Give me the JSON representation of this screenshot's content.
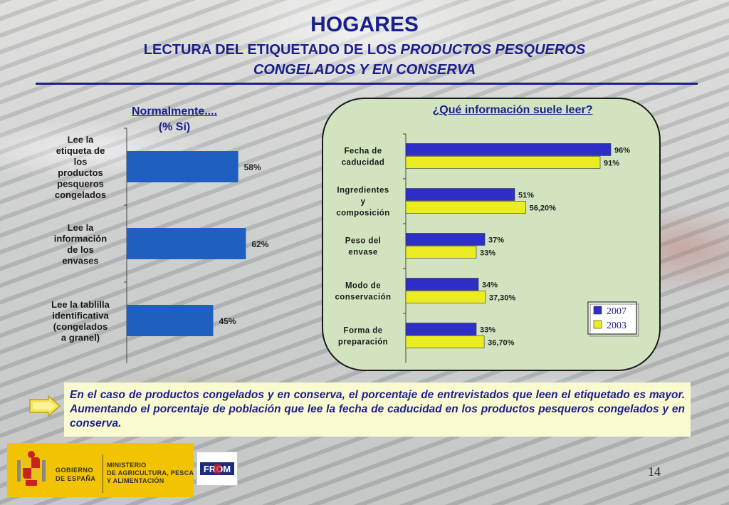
{
  "header": {
    "title": "HOGARES",
    "subtitle_line1_a": "LECTURA DEL ETIQUETADO DE LOS ",
    "subtitle_line1_b": "PRODUCTOS PESQUEROS",
    "subtitle_line2": "CONGELADOS Y EN CONSERVA"
  },
  "left_chart_head": {
    "line1": "Normalmente....",
    "line2": "(% Sí)"
  },
  "right_chart_head": "¿Qué información suele leer?",
  "chart_data": [
    {
      "type": "bar",
      "orientation": "horizontal",
      "title": "Normalmente.... (% Sí)",
      "categories": [
        [
          "Lee la",
          "etiqueta de",
          "los",
          "productos",
          "pesqueros",
          "congelados"
        ],
        [
          "Lee la",
          "información",
          "de los",
          "envases"
        ],
        [
          "Lee la tablilla",
          "identificativa",
          "(congelados",
          "a granel)"
        ]
      ],
      "values": [
        58,
        62,
        45
      ],
      "value_labels": [
        "58%",
        "62%",
        "45%"
      ],
      "xlim": [
        0,
        100
      ],
      "colors": {
        "bar": "#1f5fbf"
      }
    },
    {
      "type": "bar",
      "orientation": "horizontal",
      "title": "¿Qué información suele leer?",
      "categories": [
        [
          "Fecha de",
          "caducidad"
        ],
        [
          "Ingredientes",
          "y",
          "composición"
        ],
        [
          "Peso del",
          "envase"
        ],
        [
          "Modo de",
          "conservación"
        ],
        [
          "Forma de",
          "preparación"
        ]
      ],
      "series": [
        {
          "name": "2007",
          "values": [
            96,
            51,
            37,
            34,
            33
          ],
          "labels": [
            "96%",
            "51%",
            "37%",
            "34%",
            "33%"
          ],
          "color": "#2e2ec8"
        },
        {
          "name": "2003",
          "values": [
            91,
            56.2,
            33,
            37.3,
            36.7
          ],
          "labels": [
            "91%",
            "56,20%",
            "33%",
            "37,30%",
            "36,70%"
          ],
          "color": "#ecec22"
        }
      ],
      "xlim": [
        0,
        100
      ],
      "legend": "bottom-right"
    }
  ],
  "callout_text": "En el caso de productos congelados y en conserva, el porcentaje de entrevistados que leen el etiquetado es mayor. Aumentando el porcentaje de población que lee la fecha de caducidad en los productos pesqueros congelados y en conserva.",
  "footer": {
    "gobierno_line1": "GOBIERNO",
    "gobierno_line2": "DE ESPAÑA",
    "ministerio_line1": "MINISTERIO",
    "ministerio_line2": "DE AGRICULTURA, PESCA",
    "ministerio_line3": "Y ALIMENTACIÓN",
    "from_logo": "FROM",
    "page_number": "14"
  },
  "icons": {
    "callout_arrow": "arrow-right-icon",
    "crest": "coat-of-arms-icon"
  }
}
